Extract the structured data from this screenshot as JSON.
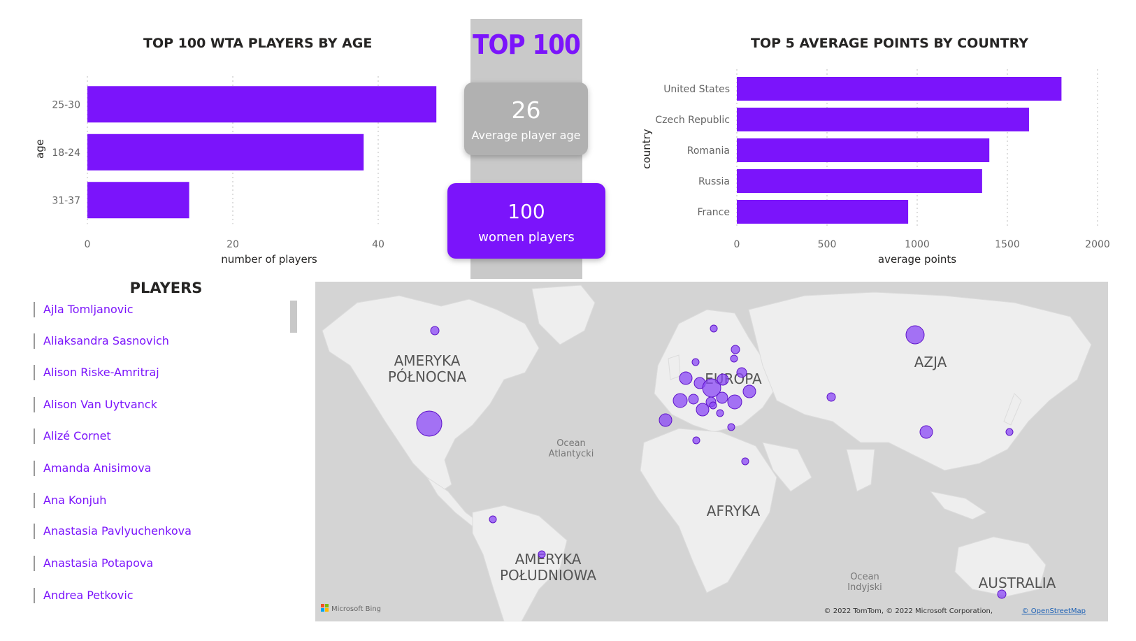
{
  "chart_data": [
    {
      "type": "bar",
      "orientation": "horizontal",
      "title": "TOP 100 WTA PLAYERS BY AGE",
      "xlabel": "number of players",
      "ylabel": "age",
      "categories": [
        "25-30",
        "18-24",
        "31-37"
      ],
      "values": [
        48,
        38,
        14
      ],
      "xlim": [
        0,
        50
      ],
      "xticks": [
        0,
        20,
        40
      ],
      "grid": true,
      "color": "#7b14fb"
    },
    {
      "type": "bar",
      "orientation": "horizontal",
      "title": "TOP 5 AVERAGE POINTS BY COUNTRY",
      "xlabel": "average points",
      "ylabel": "country",
      "categories": [
        "United States",
        "Czech Republic",
        "Romania",
        "Russia",
        "France"
      ],
      "values": [
        1800,
        1620,
        1400,
        1360,
        950
      ],
      "xlim": [
        0,
        2000
      ],
      "xticks": [
        0,
        500,
        1000,
        1500,
        2000
      ],
      "grid": true,
      "color": "#7b14fb"
    }
  ],
  "kpi": {
    "title": "TOP 100",
    "avg_age_value": "26",
    "avg_age_label": "Average player age",
    "players_value": "100",
    "players_label": "women players"
  },
  "players": {
    "title": "PLAYERS",
    "items": [
      "Ajla Tomljanovic",
      "Aliaksandra Sasnovich",
      "Alison Riske-Amritraj",
      "Alison Van Uytvanck",
      "Alizé Cornet",
      "Amanda Anisimova",
      "Ana Konjuh",
      "Anastasia Pavlyuchenkova",
      "Anastasia Potapova",
      "Andrea Petkovic"
    ]
  },
  "map": {
    "labels": {
      "north_america_1": "AMERYKA",
      "north_america_2": "PÓŁNOCNA",
      "europe": "EUROPA",
      "asia": "AZJA",
      "africa": "AFRYKA",
      "south_america_1": "AMERYKA",
      "south_america_2": "POŁUDNIOWA",
      "australia": "AUSTRALIA",
      "atlantic_1": "Ocean",
      "atlantic_2": "Atlantycki",
      "indian_1": "Ocean",
      "indian_2": "Indyjski"
    },
    "attribution": "© 2022 TomTom, © 2022 Microsoft Corporation,",
    "attribution_link": "© OpenStreetMap",
    "logo_text": "Microsoft Bing",
    "bubble_color": "#8a47f5",
    "land_color": "#eeeeee",
    "water_color": "#d4d4d4"
  }
}
